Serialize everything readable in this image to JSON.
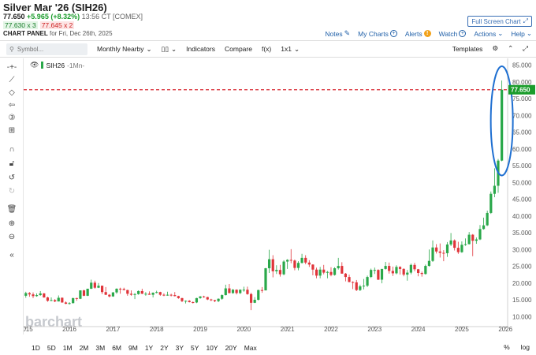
{
  "header": {
    "title": "Silver Mar '26 (SIH26)",
    "last": "77.650",
    "change": "+5.965 (+8.32%)",
    "time": "13:56 CT [COMEX]",
    "bid": "77.630 x 3",
    "ask": "77.645 x 2",
    "panel_label": "CHART PANEL",
    "panel_date": "for Fri, Dec 26th, 2025",
    "fullscreen_label": "Full Screen Chart",
    "links": {
      "notes": "Notes",
      "mycharts": "My Charts",
      "alerts": "Alerts",
      "watch": "Watch",
      "actions": "Actions",
      "help": "Help"
    }
  },
  "toolbar": {
    "symbol_placeholder": "Symbol...",
    "period": "Monthly Nearby",
    "indicators": "Indicators",
    "compare": "Compare",
    "fx": "f(x)",
    "layout": "1x1",
    "templates": "Templates"
  },
  "chart_legend": {
    "symbol": "SIH26",
    "interval": "-1Mn-"
  },
  "watermark": "barchart",
  "price_badge": "77.650",
  "bottom": {
    "ranges": [
      "1D",
      "5D",
      "1M",
      "2M",
      "3M",
      "6M",
      "9M",
      "1Y",
      "2Y",
      "3Y",
      "5Y",
      "10Y",
      "20Y",
      "Max"
    ],
    "pct": "%",
    "log": "log"
  },
  "colors": {
    "up": "#2aa84a",
    "down": "#e0343a",
    "accent": "#1f5fa8",
    "highlight": "#1e6fd1"
  },
  "chart_data": {
    "type": "candlestick",
    "x_ticks": [
      "2015",
      "2016",
      "2017",
      "2018",
      "2019",
      "2020",
      "2021",
      "2022",
      "2023",
      "2024",
      "2025",
      "2026"
    ],
    "y_ticks": [
      10,
      15,
      20,
      25,
      30,
      35,
      40,
      45,
      50,
      55,
      60,
      65,
      70,
      75,
      80,
      85
    ],
    "ylim": [
      7,
      87
    ],
    "last_price": 77.65,
    "reference_line": 77.65,
    "series": [
      {
        "t": 2015.0,
        "o": 16.2,
        "h": 17.4,
        "l": 15.6,
        "c": 17.0
      },
      {
        "t": 2015.083,
        "o": 17.0,
        "h": 17.3,
        "l": 15.9,
        "c": 16.6
      },
      {
        "t": 2015.167,
        "o": 16.6,
        "h": 17.2,
        "l": 15.5,
        "c": 16.1
      },
      {
        "t": 2015.25,
        "o": 16.1,
        "h": 16.9,
        "l": 15.9,
        "c": 16.4
      },
      {
        "t": 2015.333,
        "o": 16.4,
        "h": 17.6,
        "l": 16.2,
        "c": 16.9
      },
      {
        "t": 2015.417,
        "o": 16.9,
        "h": 17.0,
        "l": 15.6,
        "c": 15.7
      },
      {
        "t": 2015.5,
        "o": 15.7,
        "h": 15.9,
        "l": 14.4,
        "c": 14.7
      },
      {
        "t": 2015.583,
        "o": 14.7,
        "h": 15.7,
        "l": 14.6,
        "c": 14.9
      },
      {
        "t": 2015.667,
        "o": 14.9,
        "h": 15.2,
        "l": 14.3,
        "c": 14.5
      },
      {
        "t": 2015.75,
        "o": 14.5,
        "h": 16.3,
        "l": 14.5,
        "c": 15.6
      },
      {
        "t": 2015.833,
        "o": 15.6,
        "h": 15.7,
        "l": 14.1,
        "c": 14.2
      },
      {
        "t": 2015.917,
        "o": 14.2,
        "h": 14.5,
        "l": 13.7,
        "c": 13.8
      },
      {
        "t": 2016.0,
        "o": 13.8,
        "h": 14.3,
        "l": 13.6,
        "c": 14.0
      },
      {
        "t": 2016.083,
        "o": 14.0,
        "h": 15.6,
        "l": 13.9,
        "c": 15.5
      },
      {
        "t": 2016.167,
        "o": 15.5,
        "h": 15.6,
        "l": 14.7,
        "c": 15.3
      },
      {
        "t": 2016.25,
        "o": 15.3,
        "h": 17.8,
        "l": 15.2,
        "c": 17.8
      },
      {
        "t": 2016.333,
        "o": 17.8,
        "h": 18.0,
        "l": 16.1,
        "c": 16.2
      },
      {
        "t": 2016.417,
        "o": 16.2,
        "h": 18.3,
        "l": 16.1,
        "c": 18.3
      },
      {
        "t": 2016.5,
        "o": 18.3,
        "h": 21.0,
        "l": 18.2,
        "c": 20.1
      },
      {
        "t": 2016.583,
        "o": 20.1,
        "h": 20.7,
        "l": 18.3,
        "c": 18.6
      },
      {
        "t": 2016.667,
        "o": 18.6,
        "h": 20.0,
        "l": 18.5,
        "c": 19.2
      },
      {
        "t": 2016.75,
        "o": 19.2,
        "h": 19.2,
        "l": 16.7,
        "c": 17.3
      },
      {
        "t": 2016.833,
        "o": 17.3,
        "h": 18.8,
        "l": 16.4,
        "c": 16.5
      },
      {
        "t": 2016.917,
        "o": 16.5,
        "h": 16.7,
        "l": 15.7,
        "c": 16.0
      },
      {
        "t": 2017.0,
        "o": 16.0,
        "h": 17.3,
        "l": 15.9,
        "c": 17.2
      },
      {
        "t": 2017.083,
        "o": 17.2,
        "h": 18.4,
        "l": 16.8,
        "c": 18.3
      },
      {
        "t": 2017.167,
        "o": 18.3,
        "h": 18.6,
        "l": 16.8,
        "c": 18.2
      },
      {
        "t": 2017.25,
        "o": 18.2,
        "h": 18.6,
        "l": 17.8,
        "c": 17.9
      },
      {
        "t": 2017.333,
        "o": 17.9,
        "h": 18.0,
        "l": 16.2,
        "c": 16.8
      },
      {
        "t": 2017.417,
        "o": 16.8,
        "h": 17.8,
        "l": 16.2,
        "c": 16.5
      },
      {
        "t": 2017.5,
        "o": 16.5,
        "h": 17.0,
        "l": 15.2,
        "c": 16.7
      },
      {
        "t": 2017.583,
        "o": 16.7,
        "h": 17.8,
        "l": 16.5,
        "c": 17.6
      },
      {
        "t": 2017.667,
        "o": 17.6,
        "h": 18.3,
        "l": 16.7,
        "c": 16.8
      },
      {
        "t": 2017.75,
        "o": 16.8,
        "h": 17.3,
        "l": 16.2,
        "c": 16.8
      },
      {
        "t": 2017.833,
        "o": 16.8,
        "h": 17.5,
        "l": 16.5,
        "c": 16.5
      },
      {
        "t": 2017.917,
        "o": 16.5,
        "h": 17.2,
        "l": 15.7,
        "c": 17.1
      },
      {
        "t": 2018.0,
        "o": 17.1,
        "h": 17.7,
        "l": 16.9,
        "c": 17.3
      },
      {
        "t": 2018.083,
        "o": 17.3,
        "h": 17.4,
        "l": 16.2,
        "c": 16.5
      },
      {
        "t": 2018.167,
        "o": 16.5,
        "h": 16.9,
        "l": 16.1,
        "c": 16.4
      },
      {
        "t": 2018.25,
        "o": 16.4,
        "h": 17.4,
        "l": 16.2,
        "c": 16.5
      },
      {
        "t": 2018.333,
        "o": 16.5,
        "h": 16.8,
        "l": 16.0,
        "c": 16.4
      },
      {
        "t": 2018.417,
        "o": 16.4,
        "h": 17.3,
        "l": 16.0,
        "c": 16.1
      },
      {
        "t": 2018.5,
        "o": 16.1,
        "h": 16.2,
        "l": 15.3,
        "c": 15.5
      },
      {
        "t": 2018.583,
        "o": 15.5,
        "h": 15.6,
        "l": 14.3,
        "c": 14.6
      },
      {
        "t": 2018.667,
        "o": 14.6,
        "h": 14.8,
        "l": 13.9,
        "c": 14.7
      },
      {
        "t": 2018.75,
        "o": 14.7,
        "h": 14.9,
        "l": 14.2,
        "c": 14.3
      },
      {
        "t": 2018.833,
        "o": 14.3,
        "h": 14.5,
        "l": 13.9,
        "c": 14.2
      },
      {
        "t": 2018.917,
        "o": 14.2,
        "h": 15.6,
        "l": 14.0,
        "c": 15.5
      },
      {
        "t": 2019.0,
        "o": 15.5,
        "h": 16.1,
        "l": 15.3,
        "c": 16.0
      },
      {
        "t": 2019.083,
        "o": 16.0,
        "h": 16.2,
        "l": 15.6,
        "c": 15.8
      },
      {
        "t": 2019.167,
        "o": 15.8,
        "h": 15.9,
        "l": 14.9,
        "c": 15.1
      },
      {
        "t": 2019.25,
        "o": 15.1,
        "h": 15.3,
        "l": 14.6,
        "c": 14.9
      },
      {
        "t": 2019.333,
        "o": 14.9,
        "h": 15.0,
        "l": 14.3,
        "c": 14.6
      },
      {
        "t": 2019.417,
        "o": 14.6,
        "h": 15.4,
        "l": 14.3,
        "c": 15.3
      },
      {
        "t": 2019.5,
        "o": 15.3,
        "h": 16.6,
        "l": 15.0,
        "c": 16.4
      },
      {
        "t": 2019.583,
        "o": 16.4,
        "h": 19.5,
        "l": 16.3,
        "c": 18.4
      },
      {
        "t": 2019.667,
        "o": 18.4,
        "h": 19.7,
        "l": 16.9,
        "c": 17.0
      },
      {
        "t": 2019.75,
        "o": 17.0,
        "h": 18.2,
        "l": 16.8,
        "c": 18.0
      },
      {
        "t": 2019.833,
        "o": 18.0,
        "h": 18.1,
        "l": 16.6,
        "c": 17.0
      },
      {
        "t": 2019.917,
        "o": 17.0,
        "h": 18.1,
        "l": 16.7,
        "c": 18.0
      },
      {
        "t": 2020.0,
        "o": 18.0,
        "h": 18.9,
        "l": 17.4,
        "c": 18.0
      },
      {
        "t": 2020.083,
        "o": 18.0,
        "h": 18.9,
        "l": 16.5,
        "c": 16.7
      },
      {
        "t": 2020.167,
        "o": 16.7,
        "h": 17.1,
        "l": 11.9,
        "c": 14.1
      },
      {
        "t": 2020.25,
        "o": 14.1,
        "h": 15.8,
        "l": 14.0,
        "c": 15.0
      },
      {
        "t": 2020.333,
        "o": 15.0,
        "h": 18.0,
        "l": 14.8,
        "c": 17.9
      },
      {
        "t": 2020.417,
        "o": 17.9,
        "h": 18.8,
        "l": 17.1,
        "c": 17.8
      },
      {
        "t": 2020.5,
        "o": 17.8,
        "h": 24.5,
        "l": 17.8,
        "c": 24.4
      },
      {
        "t": 2020.583,
        "o": 24.4,
        "h": 29.9,
        "l": 23.0,
        "c": 27.1
      },
      {
        "t": 2020.667,
        "o": 27.1,
        "h": 28.3,
        "l": 21.7,
        "c": 23.5
      },
      {
        "t": 2020.75,
        "o": 23.5,
        "h": 25.3,
        "l": 22.7,
        "c": 23.9
      },
      {
        "t": 2020.833,
        "o": 23.9,
        "h": 25.4,
        "l": 21.9,
        "c": 22.6
      },
      {
        "t": 2020.917,
        "o": 22.6,
        "h": 26.8,
        "l": 22.3,
        "c": 26.4
      },
      {
        "t": 2021.0,
        "o": 26.4,
        "h": 27.1,
        "l": 24.2,
        "c": 26.9
      },
      {
        "t": 2021.083,
        "o": 26.9,
        "h": 30.1,
        "l": 25.9,
        "c": 26.7
      },
      {
        "t": 2021.167,
        "o": 26.7,
        "h": 27.0,
        "l": 23.8,
        "c": 24.5
      },
      {
        "t": 2021.25,
        "o": 24.5,
        "h": 26.5,
        "l": 23.8,
        "c": 26.0
      },
      {
        "t": 2021.333,
        "o": 26.0,
        "h": 28.7,
        "l": 25.8,
        "c": 27.5
      },
      {
        "t": 2021.417,
        "o": 27.5,
        "h": 28.3,
        "l": 25.6,
        "c": 26.1
      },
      {
        "t": 2021.5,
        "o": 26.1,
        "h": 26.8,
        "l": 24.8,
        "c": 25.5
      },
      {
        "t": 2021.583,
        "o": 25.5,
        "h": 25.6,
        "l": 22.3,
        "c": 24.0
      },
      {
        "t": 2021.667,
        "o": 24.0,
        "h": 24.6,
        "l": 21.4,
        "c": 22.2
      },
      {
        "t": 2021.75,
        "o": 22.2,
        "h": 24.8,
        "l": 21.4,
        "c": 24.0
      },
      {
        "t": 2021.833,
        "o": 24.0,
        "h": 25.4,
        "l": 22.6,
        "c": 23.1
      },
      {
        "t": 2021.917,
        "o": 23.1,
        "h": 23.6,
        "l": 21.4,
        "c": 23.3
      },
      {
        "t": 2022.0,
        "o": 23.3,
        "h": 24.7,
        "l": 22.0,
        "c": 22.4
      },
      {
        "t": 2022.083,
        "o": 22.4,
        "h": 24.7,
        "l": 22.2,
        "c": 24.4
      },
      {
        "t": 2022.167,
        "o": 24.4,
        "h": 27.5,
        "l": 24.0,
        "c": 25.1
      },
      {
        "t": 2022.25,
        "o": 25.1,
        "h": 26.2,
        "l": 22.8,
        "c": 22.8
      },
      {
        "t": 2022.333,
        "o": 22.8,
        "h": 23.0,
        "l": 20.5,
        "c": 21.8
      },
      {
        "t": 2022.417,
        "o": 21.8,
        "h": 22.5,
        "l": 20.2,
        "c": 20.3
      },
      {
        "t": 2022.5,
        "o": 20.3,
        "h": 20.5,
        "l": 18.2,
        "c": 20.2
      },
      {
        "t": 2022.583,
        "o": 20.2,
        "h": 20.9,
        "l": 17.6,
        "c": 17.9
      },
      {
        "t": 2022.667,
        "o": 17.9,
        "h": 19.5,
        "l": 17.6,
        "c": 19.0
      },
      {
        "t": 2022.75,
        "o": 19.0,
        "h": 21.2,
        "l": 18.1,
        "c": 19.2
      },
      {
        "t": 2022.833,
        "o": 19.2,
        "h": 22.2,
        "l": 18.8,
        "c": 21.8
      },
      {
        "t": 2022.917,
        "o": 21.8,
        "h": 24.3,
        "l": 21.5,
        "c": 23.9
      },
      {
        "t": 2023.0,
        "o": 23.9,
        "h": 24.6,
        "l": 22.7,
        "c": 23.9
      },
      {
        "t": 2023.083,
        "o": 23.9,
        "h": 24.1,
        "l": 20.9,
        "c": 21.0
      },
      {
        "t": 2023.167,
        "o": 21.0,
        "h": 24.2,
        "l": 19.9,
        "c": 24.2
      },
      {
        "t": 2023.25,
        "o": 24.2,
        "h": 26.3,
        "l": 24.0,
        "c": 25.1
      },
      {
        "t": 2023.333,
        "o": 25.1,
        "h": 26.1,
        "l": 22.8,
        "c": 23.6
      },
      {
        "t": 2023.417,
        "o": 23.6,
        "h": 24.9,
        "l": 22.1,
        "c": 22.9
      },
      {
        "t": 2023.5,
        "o": 22.9,
        "h": 25.3,
        "l": 22.6,
        "c": 24.8
      },
      {
        "t": 2023.583,
        "o": 24.8,
        "h": 25.0,
        "l": 22.5,
        "c": 24.2
      },
      {
        "t": 2023.667,
        "o": 24.2,
        "h": 24.4,
        "l": 22.0,
        "c": 22.5
      },
      {
        "t": 2023.75,
        "o": 22.5,
        "h": 23.9,
        "l": 20.7,
        "c": 23.1
      },
      {
        "t": 2023.833,
        "o": 23.1,
        "h": 25.8,
        "l": 22.6,
        "c": 25.4
      },
      {
        "t": 2023.917,
        "o": 25.4,
        "h": 26.0,
        "l": 23.5,
        "c": 24.1
      },
      {
        "t": 2024.0,
        "o": 24.1,
        "h": 24.2,
        "l": 22.0,
        "c": 23.0
      },
      {
        "t": 2024.083,
        "o": 23.0,
        "h": 23.4,
        "l": 21.9,
        "c": 22.7
      },
      {
        "t": 2024.167,
        "o": 22.7,
        "h": 25.5,
        "l": 22.5,
        "c": 25.1
      },
      {
        "t": 2024.25,
        "o": 25.1,
        "h": 30.0,
        "l": 24.9,
        "c": 26.6
      },
      {
        "t": 2024.333,
        "o": 26.6,
        "h": 32.7,
        "l": 26.3,
        "c": 30.6
      },
      {
        "t": 2024.417,
        "o": 30.6,
        "h": 31.6,
        "l": 28.8,
        "c": 29.4
      },
      {
        "t": 2024.5,
        "o": 29.4,
        "h": 31.8,
        "l": 27.6,
        "c": 29.0
      },
      {
        "t": 2024.583,
        "o": 29.0,
        "h": 29.8,
        "l": 26.5,
        "c": 28.9
      },
      {
        "t": 2024.667,
        "o": 28.9,
        "h": 32.2,
        "l": 27.8,
        "c": 31.5
      },
      {
        "t": 2024.75,
        "o": 31.5,
        "h": 34.9,
        "l": 31.0,
        "c": 32.7
      },
      {
        "t": 2024.833,
        "o": 32.7,
        "h": 33.0,
        "l": 29.7,
        "c": 30.5
      },
      {
        "t": 2024.917,
        "o": 30.5,
        "h": 32.3,
        "l": 28.7,
        "c": 29.2
      },
      {
        "t": 2025.0,
        "o": 29.2,
        "h": 32.4,
        "l": 29.0,
        "c": 31.4
      },
      {
        "t": 2025.083,
        "o": 31.4,
        "h": 33.3,
        "l": 31.1,
        "c": 31.6
      },
      {
        "t": 2025.167,
        "o": 31.6,
        "h": 35.2,
        "l": 31.5,
        "c": 34.4
      },
      {
        "t": 2025.25,
        "o": 34.4,
        "h": 34.6,
        "l": 28.0,
        "c": 32.6
      },
      {
        "t": 2025.333,
        "o": 32.6,
        "h": 33.6,
        "l": 31.7,
        "c": 33.0
      },
      {
        "t": 2025.417,
        "o": 33.0,
        "h": 37.3,
        "l": 32.8,
        "c": 36.1
      },
      {
        "t": 2025.5,
        "o": 36.1,
        "h": 39.5,
        "l": 35.9,
        "c": 37.2
      },
      {
        "t": 2025.583,
        "o": 37.2,
        "h": 41.6,
        "l": 37.0,
        "c": 40.9
      },
      {
        "t": 2025.667,
        "o": 40.9,
        "h": 47.3,
        "l": 40.6,
        "c": 46.6
      },
      {
        "t": 2025.75,
        "o": 46.6,
        "h": 54.2,
        "l": 45.6,
        "c": 49.0
      },
      {
        "t": 2025.833,
        "o": 49.0,
        "h": 57.0,
        "l": 46.9,
        "c": 56.5
      },
      {
        "t": 2025.917,
        "o": 56.5,
        "h": 80.4,
        "l": 56.3,
        "c": 77.65
      }
    ]
  }
}
